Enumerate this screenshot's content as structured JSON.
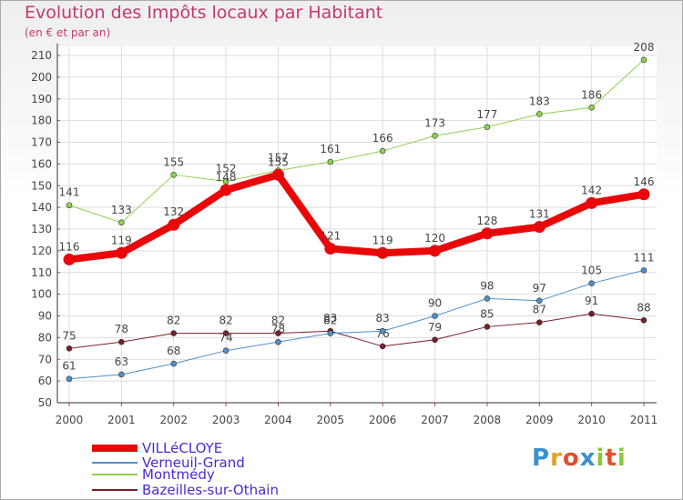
{
  "chart_data": {
    "type": "line",
    "title": "Evolution des Impôts locaux par Habitant",
    "subtitle": "(en € et par an)",
    "x": [
      "2000",
      "2001",
      "2002",
      "2003",
      "2004",
      "2005",
      "2006",
      "2007",
      "2008",
      "2009",
      "2010",
      "2011"
    ],
    "y_ticks": [
      50,
      60,
      70,
      80,
      90,
      100,
      110,
      120,
      130,
      140,
      150,
      160,
      170,
      180,
      190,
      200,
      210
    ],
    "ylim": [
      50,
      210
    ],
    "series": [
      {
        "name": "Bazeilles-sur-Othain",
        "color": "#7a1f2b",
        "width": 1,
        "values": [
          75,
          78,
          82,
          82,
          82,
          83,
          76,
          79,
          85,
          87,
          91,
          88
        ]
      },
      {
        "name": "Montmédy",
        "color": "#8fd150",
        "width": 1,
        "values": [
          141,
          133,
          155,
          152,
          157,
          161,
          166,
          173,
          177,
          183,
          186,
          208
        ]
      },
      {
        "name": "Verneuil-Grand",
        "color": "#4f90c8",
        "width": 1,
        "values": [
          61,
          63,
          68,
          74,
          78,
          82,
          83,
          90,
          98,
          97,
          105,
          111
        ]
      },
      {
        "name": "VILLéCLOYE",
        "color": "#e8080a",
        "width": 8,
        "values": [
          116,
          119,
          132,
          148,
          155,
          121,
          119,
          120,
          128,
          131,
          142,
          146
        ]
      }
    ],
    "legend": [
      "VILLéCLOYE",
      "Verneuil-Grand",
      "Montmédy",
      "Bazeilles-sur-Othain"
    ]
  },
  "logo": {
    "letters": [
      "P",
      "r",
      "o",
      "x",
      "i",
      "t",
      "i"
    ],
    "colors": [
      "#3a8fd0",
      "#e8a020",
      "#e05030",
      "#3a8fd0",
      "#8cc63e",
      "#e05030",
      "#8cc63e"
    ]
  }
}
